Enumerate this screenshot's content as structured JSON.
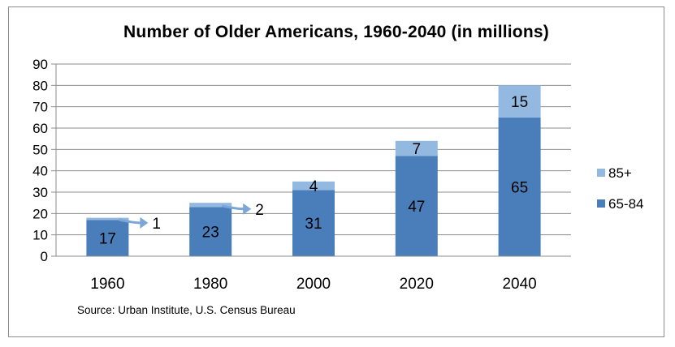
{
  "chart_data": {
    "type": "bar",
    "stacked": true,
    "title": "Number of Older Americans, 1960-2040 (in millions)",
    "source": "Source: Urban Institute, U.S. Census Bureau",
    "categories": [
      "1960",
      "1980",
      "2000",
      "2020",
      "2040"
    ],
    "series": [
      {
        "name": "65-84",
        "values": [
          17,
          23,
          31,
          47,
          65
        ],
        "color": "#4a7ebb"
      },
      {
        "name": "85+",
        "values": [
          1,
          2,
          4,
          7,
          15
        ],
        "color": "#93b9e0"
      }
    ],
    "ylim": [
      0,
      90
    ],
    "yticks": [
      0,
      10,
      20,
      30,
      40,
      50,
      60,
      70,
      80,
      90
    ],
    "grid": true,
    "legend": "right",
    "callouts": [
      {
        "category": "1960",
        "series": "85+",
        "label": "1",
        "color": "#7aa7d8"
      },
      {
        "category": "1980",
        "series": "85+",
        "label": "2",
        "color": "#7aa7d8"
      }
    ]
  }
}
